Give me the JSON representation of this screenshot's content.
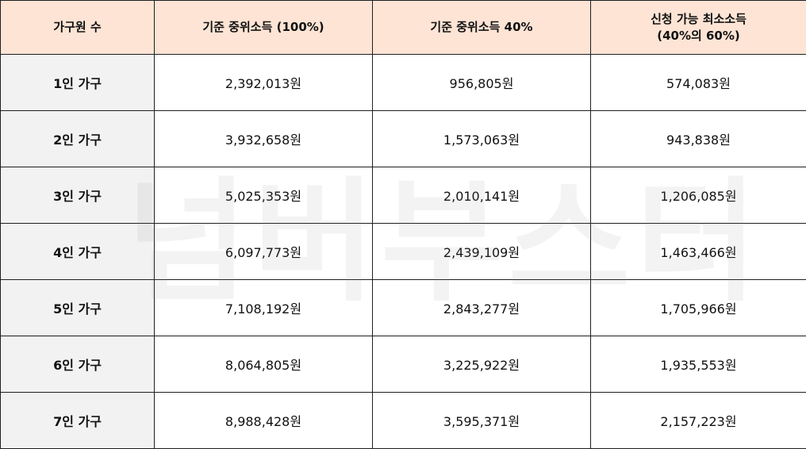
{
  "table": {
    "headers": [
      "가구원 수",
      "기준 중위소득 (100%)",
      "기준 중위소득 40%",
      "신청 가능 최소소득\n(40%의 60%)"
    ],
    "header_fill_color": "#fde4d5",
    "rowhead_fill_color": "#f2f2f2",
    "rows": [
      {
        "label": "1인 가구",
        "median": "2,392,013원",
        "median40": "956,805원",
        "min": "574,083원"
      },
      {
        "label": "2인 가구",
        "median": "3,932,658원",
        "median40": "1,573,063원",
        "min": "943,838원"
      },
      {
        "label": "3인 가구",
        "median": "5,025,353원",
        "median40": "2,010,141원",
        "min": "1,206,085원"
      },
      {
        "label": "4인 가구",
        "median": "6,097,773원",
        "median40": "2,439,109원",
        "min": "1,463,466원"
      },
      {
        "label": "5인 가구",
        "median": "7,108,192원",
        "median40": "2,843,277원",
        "min": "1,705,966원"
      },
      {
        "label": "6인 가구",
        "median": "8,064,805원",
        "median40": "3,225,922원",
        "min": "1,935,553원"
      },
      {
        "label": "7인 가구",
        "median": "8,988,428원",
        "median40": "3,595,371원",
        "min": "2,157,223원"
      }
    ]
  },
  "watermark": "넘버부스터"
}
